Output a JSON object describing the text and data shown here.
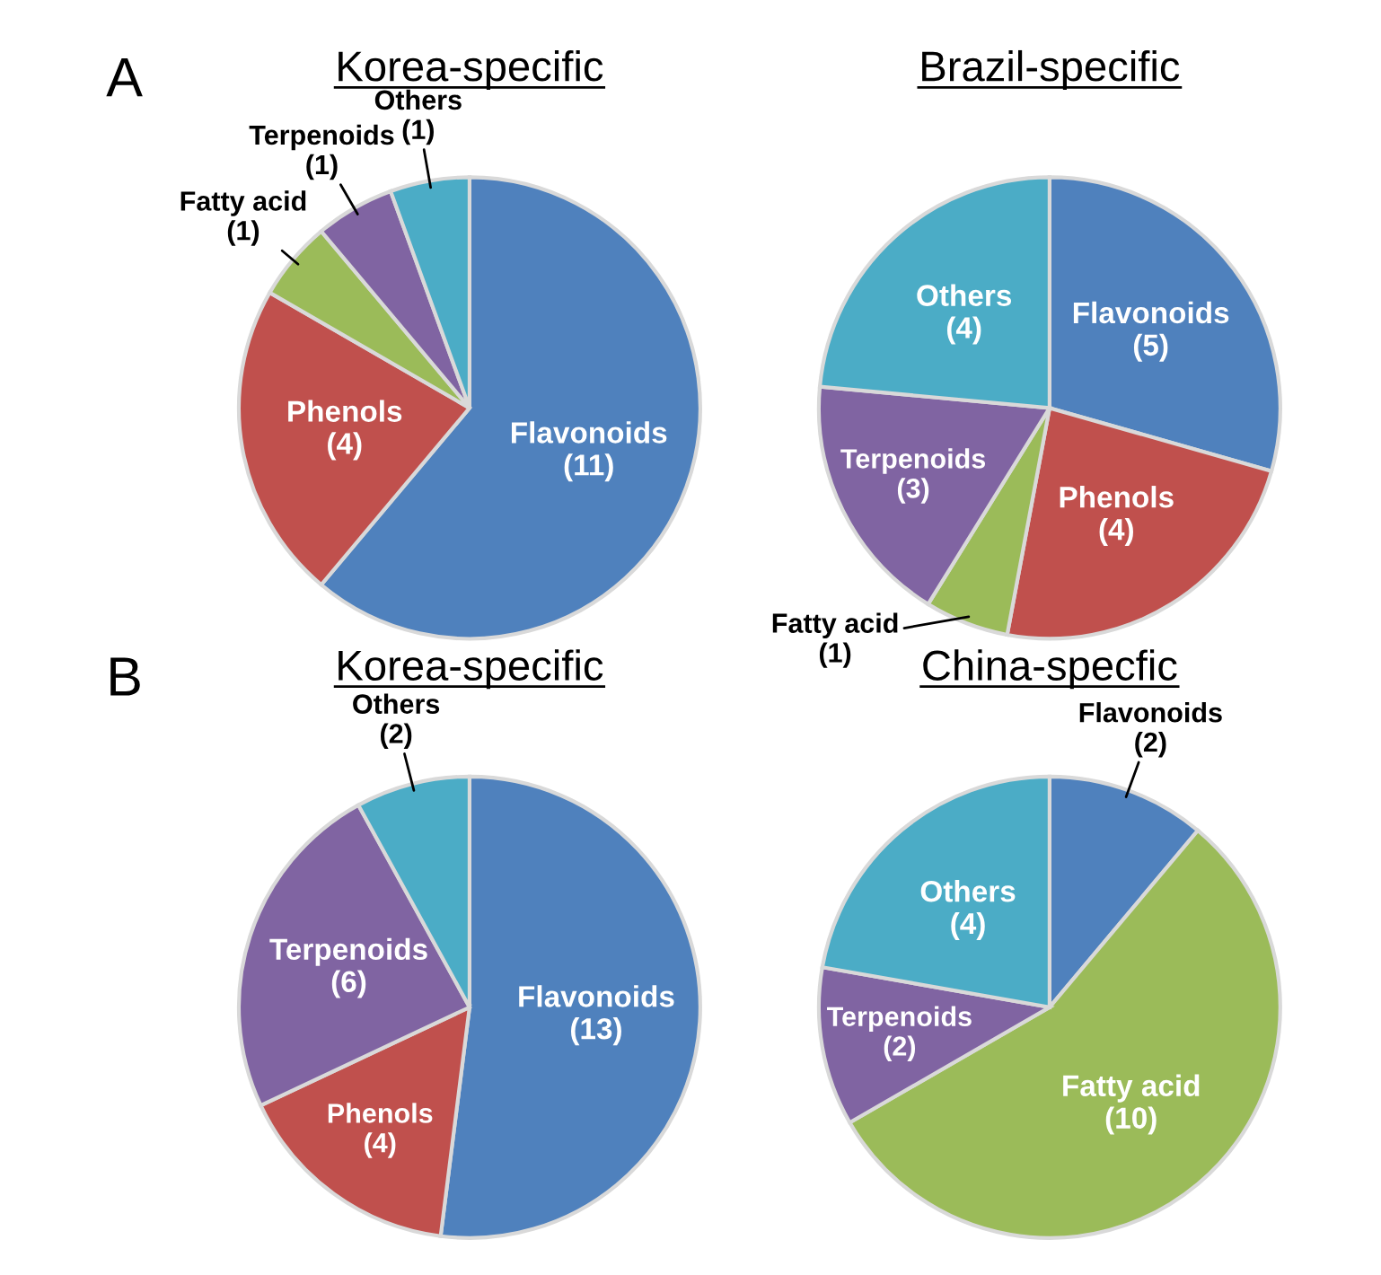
{
  "chart_data": [
    {
      "type": "pie",
      "title": "Korea-specific",
      "annotations": [
        "A"
      ],
      "categories": [
        "Flavonoids",
        "Phenols",
        "Fatty acid",
        "Terpenoids",
        "Others"
      ],
      "values": [
        11,
        4,
        1,
        1,
        1
      ],
      "value_labels": [
        "(11)",
        "(4)",
        "(1)",
        "(1)",
        "(1)"
      ],
      "colors": [
        "#4f81bd",
        "#c0504d",
        "#9bbb59",
        "#8064a2",
        "#4bacc6"
      ]
    },
    {
      "type": "pie",
      "title": "Brazil-specific",
      "categories": [
        "Flavonoids",
        "Phenols",
        "Fatty acid",
        "Terpenoids",
        "Others"
      ],
      "values": [
        5,
        4,
        1,
        3,
        4
      ],
      "value_labels": [
        "(5)",
        "(4)",
        "(1)",
        "(3)",
        "(4)"
      ],
      "colors": [
        "#4f81bd",
        "#c0504d",
        "#9bbb59",
        "#8064a2",
        "#4bacc6"
      ]
    },
    {
      "type": "pie",
      "title": "Korea-specific",
      "annotations": [
        "B"
      ],
      "categories": [
        "Flavonoids",
        "Phenols",
        "Terpenoids",
        "Others"
      ],
      "values": [
        13,
        4,
        6,
        2
      ],
      "value_labels": [
        "(13)",
        "(4)",
        "(6)",
        "(2)"
      ],
      "colors": [
        "#4f81bd",
        "#c0504d",
        "#8064a2",
        "#4bacc6"
      ]
    },
    {
      "type": "pie",
      "title": "China-specfic",
      "categories": [
        "Flavonoids",
        "Fatty acid",
        "Terpenoids",
        "Others"
      ],
      "values": [
        2,
        10,
        2,
        4
      ],
      "value_labels": [
        "(2)",
        "(10)",
        "(2)",
        "(4)"
      ],
      "colors": [
        "#4f81bd",
        "#9bbb59",
        "#8064a2",
        "#4bacc6"
      ]
    }
  ]
}
